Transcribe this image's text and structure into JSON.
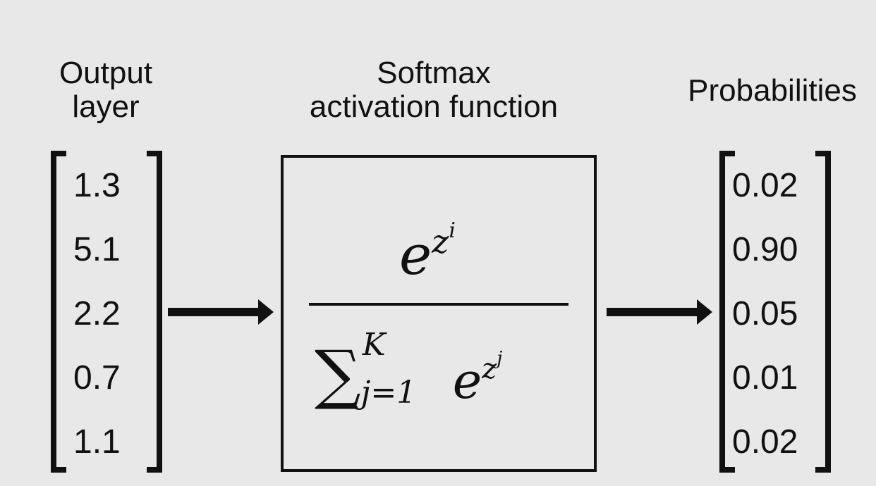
{
  "headings": {
    "output": [
      "Output",
      "layer"
    ],
    "softmax": [
      "Softmax",
      "activation function"
    ],
    "probabilities": "Probabilities"
  },
  "output_layer": [
    "1.3",
    "5.1",
    "2.2",
    "0.7",
    "1.1"
  ],
  "probabilities": [
    "0.02",
    "0.90",
    "0.05",
    "0.01",
    "0.02"
  ],
  "formula": {
    "numerator_base": "e",
    "numerator_exp_var": "z",
    "numerator_exp_sub": "i",
    "sum_symbol": "∑",
    "sum_upper": "K",
    "sum_lower": "j=1",
    "denominator_base": "e",
    "denominator_exp_var": "z",
    "denominator_exp_sub": "j"
  }
}
